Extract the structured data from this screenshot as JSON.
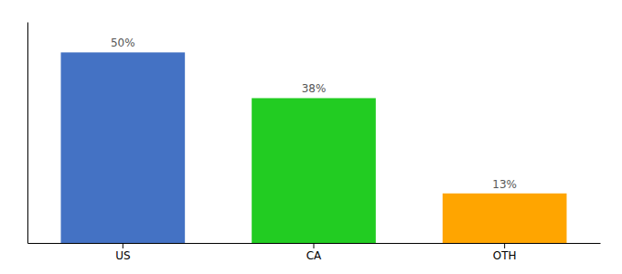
{
  "chart_data": {
    "type": "bar",
    "categories": [
      "US",
      "CA",
      "OTH"
    ],
    "values": [
      50,
      38,
      13
    ],
    "value_labels": [
      "50%",
      "38%",
      "13%"
    ],
    "colors": [
      "#4472C4",
      "#22CC22",
      "#FFA500"
    ],
    "ylim": [
      0,
      58
    ],
    "data_labels": true,
    "tick_labels": "x",
    "grid": false
  }
}
